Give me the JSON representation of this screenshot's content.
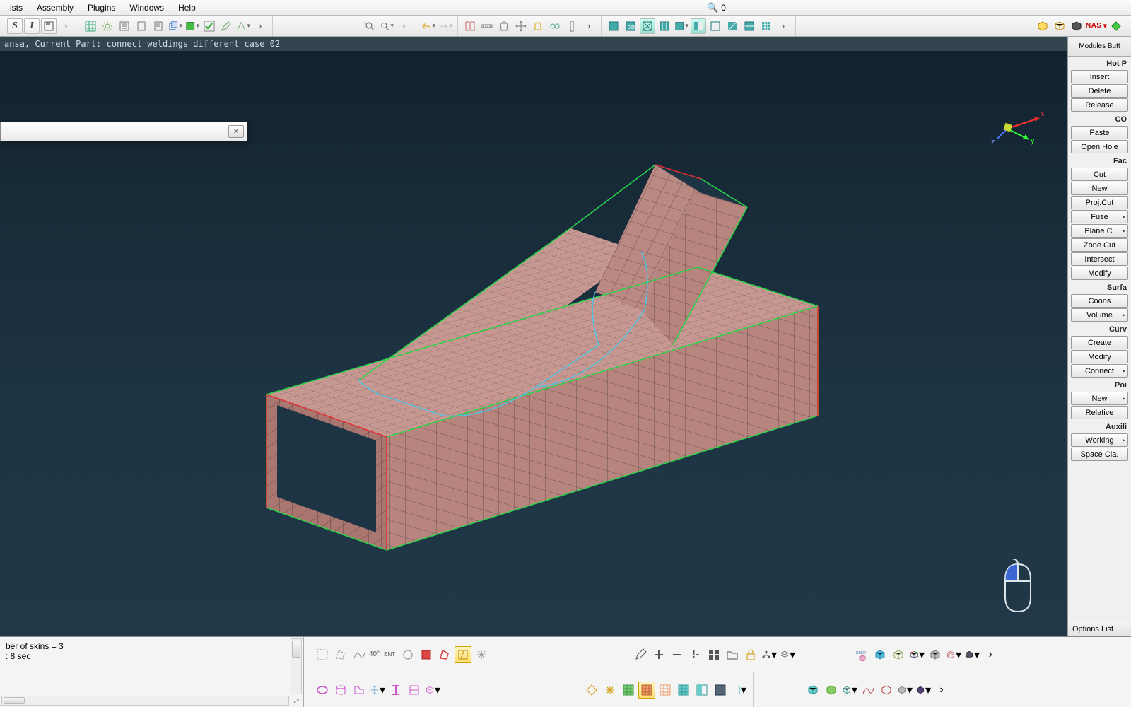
{
  "menu": {
    "items": [
      "ists",
      "Assembly",
      "Plugins",
      "Windows",
      "Help"
    ]
  },
  "search": {
    "value": "0"
  },
  "status": {
    "text": "ansa,  Current Part: connect weldings different case 02"
  },
  "side": {
    "topTab": "Modules Butt",
    "deckLabel": "NAS",
    "sections": [
      {
        "title": "Hot P",
        "buttons": [
          {
            "l": "Insert"
          },
          {
            "l": "Delete"
          },
          {
            "l": "Release"
          }
        ]
      },
      {
        "title": "CO",
        "buttons": [
          {
            "l": "Paste"
          },
          {
            "l": "Open Hole"
          }
        ]
      },
      {
        "title": "Fac",
        "buttons": [
          {
            "l": "Cut"
          },
          {
            "l": "New"
          },
          {
            "l": "Proj.Cut"
          },
          {
            "l": "Fuse",
            "a": true
          },
          {
            "l": "Plane C.",
            "a": true
          },
          {
            "l": "Zone Cut"
          },
          {
            "l": "Intersect"
          },
          {
            "l": "Modify"
          }
        ]
      },
      {
        "title": "Surfa",
        "buttons": [
          {
            "l": "Coons"
          },
          {
            "l": "Volume",
            "a": true
          }
        ]
      },
      {
        "title": "Curv",
        "buttons": [
          {
            "l": "Create"
          },
          {
            "l": "Modify"
          },
          {
            "l": "Connect",
            "a": true
          }
        ]
      },
      {
        "title": "Poi",
        "buttons": [
          {
            "l": "New",
            "a": true
          },
          {
            "l": "Relative"
          }
        ]
      },
      {
        "title": "Auxili",
        "buttons": [
          {
            "l": "Working",
            "a": true
          },
          {
            "l": "Space Cla."
          }
        ]
      }
    ],
    "optionsLabel": "Options List"
  },
  "log": {
    "line1": "ber of skins = 3",
    "line2": " :  8 sec"
  },
  "angle": {
    "value": "40°"
  },
  "triad": {
    "x": "x",
    "y": "y",
    "z": "z"
  },
  "colors": {
    "meshFace": "#c79892",
    "meshLine": "#5a4a48",
    "edgeGreen": "#2bd24a",
    "edgeRed": "#e03030",
    "edgeCyan": "#49c6e8",
    "bgTop": "#12222e",
    "bgBot": "#203848"
  }
}
